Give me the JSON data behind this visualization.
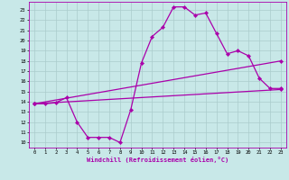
{
  "xlabel": "Windchill (Refroidissement éolien,°C)",
  "xlim": [
    -0.5,
    23.5
  ],
  "ylim": [
    9.5,
    23.8
  ],
  "yticks": [
    10,
    11,
    12,
    13,
    14,
    15,
    16,
    17,
    18,
    19,
    20,
    21,
    22,
    23
  ],
  "xticks": [
    0,
    1,
    2,
    3,
    4,
    5,
    6,
    7,
    8,
    9,
    10,
    11,
    12,
    13,
    14,
    15,
    16,
    17,
    18,
    19,
    20,
    21,
    22,
    23
  ],
  "background_color": "#c8e8e8",
  "grid_color": "#aacccc",
  "line_color": "#aa00aa",
  "line1_x": [
    0,
    1,
    2,
    3,
    4,
    5,
    6,
    7,
    8,
    9,
    10,
    11,
    12,
    13,
    14,
    15,
    16,
    17,
    18,
    19,
    20,
    21,
    22,
    23
  ],
  "line1_y": [
    13.8,
    13.8,
    13.9,
    14.4,
    12.0,
    10.5,
    10.5,
    10.5,
    10.0,
    13.2,
    17.8,
    20.4,
    21.3,
    23.3,
    23.3,
    22.5,
    22.7,
    20.7,
    18.7,
    19.0,
    18.5,
    16.3,
    15.3,
    15.3
  ],
  "line2_x": [
    0,
    23
  ],
  "line2_y": [
    13.8,
    15.2
  ],
  "line3_x": [
    0,
    23
  ],
  "line3_y": [
    13.8,
    18.0
  ],
  "marker": "D",
  "marker_size": 2.2,
  "line_width": 0.9
}
